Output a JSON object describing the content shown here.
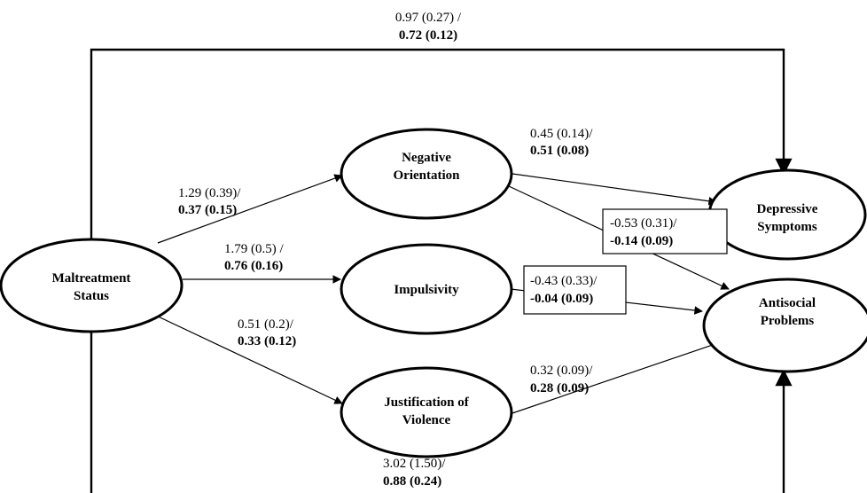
{
  "nodes": {
    "maltreatment": [
      "Maltreatment",
      "Status"
    ],
    "negative": [
      "Negative",
      "Orientation"
    ],
    "impulsivity": [
      "Impulsivity"
    ],
    "justification": [
      "Justification of",
      "Violence"
    ],
    "depressive": [
      "Depressive",
      "Symptoms"
    ],
    "antisocial": [
      "Antisocial",
      "Problems"
    ]
  },
  "paths": {
    "malt_dep": {
      "unstd": "0.97 (0.27) /",
      "std": "0.72 (0.12)"
    },
    "malt_neg": {
      "unstd": "1.29 (0.39)/",
      "std": "0.37 (0.15)"
    },
    "malt_imp": {
      "unstd": "1.79 (0.5) /",
      "std": "0.76 (0.16)"
    },
    "malt_jus": {
      "unstd": "0.51 (0.2)/",
      "std": "0.33 (0.12)"
    },
    "neg_dep": {
      "unstd": "0.45 (0.14)/",
      "std": "0.51 (0.08)"
    },
    "neg_anti": {
      "unstd": "-0.53 (0.31)/",
      "std": "-0.14 (0.09)"
    },
    "imp_anti": {
      "unstd": "-0.43 (0.33)/",
      "std": "-0.04 (0.09)"
    },
    "jus_anti": {
      "unstd": "0.32 (0.09)/",
      "std": "0.28 (0.09)"
    },
    "malt_anti": {
      "unstd": "3.02 (1.50)/",
      "std": "0.88 (0.24)"
    }
  }
}
